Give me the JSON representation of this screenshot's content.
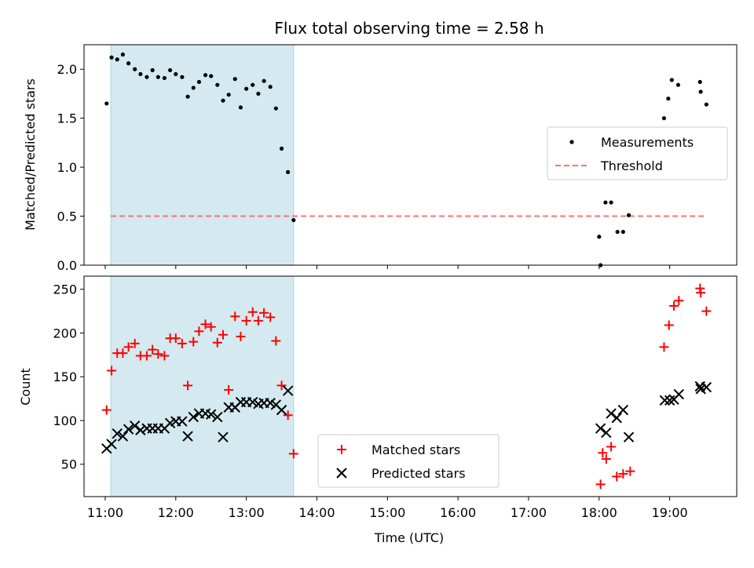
{
  "colors": {
    "shade": "#d4eaf0",
    "shade_edge": "#a8d4e0",
    "measurement": "#000000",
    "threshold": "#ff7070",
    "matched": "#ff0000",
    "predicted": "#000000"
  },
  "chart_data": [
    {
      "type": "scatter",
      "title": "Flux total observing time = 2.58 h",
      "xlabel": "",
      "ylabel": "Matched/Predicted stars",
      "xlim": [
        10.7,
        19.95
      ],
      "ylim": [
        0,
        2.25
      ],
      "yticks": [
        "0.0",
        "0.5",
        "1.0",
        "1.5",
        "2.0"
      ],
      "ytick_values": [
        0,
        0.5,
        1.0,
        1.5,
        2.0
      ],
      "shaded_x": [
        11.08,
        13.67
      ],
      "threshold": {
        "name": "Threshold",
        "value": 0.5,
        "x": [
          11.08,
          19.52
        ]
      },
      "legend_position": "center-right",
      "series": [
        {
          "name": "Measurements",
          "points": [
            [
              11.02,
              1.65
            ],
            [
              11.09,
              2.12
            ],
            [
              11.17,
              2.1
            ],
            [
              11.25,
              2.15
            ],
            [
              11.33,
              2.06
            ],
            [
              11.42,
              2.0
            ],
            [
              11.5,
              1.95
            ],
            [
              11.59,
              1.92
            ],
            [
              11.67,
              1.99
            ],
            [
              11.75,
              1.92
            ],
            [
              11.84,
              1.91
            ],
            [
              11.92,
              1.99
            ],
            [
              12.0,
              1.95
            ],
            [
              12.09,
              1.92
            ],
            [
              12.17,
              1.72
            ],
            [
              12.25,
              1.81
            ],
            [
              12.33,
              1.87
            ],
            [
              12.42,
              1.94
            ],
            [
              12.5,
              1.93
            ],
            [
              12.59,
              1.84
            ],
            [
              12.67,
              1.68
            ],
            [
              12.75,
              1.74
            ],
            [
              12.84,
              1.9
            ],
            [
              12.92,
              1.61
            ],
            [
              13.0,
              1.8
            ],
            [
              13.09,
              1.84
            ],
            [
              13.17,
              1.75
            ],
            [
              13.25,
              1.88
            ],
            [
              13.34,
              1.82
            ],
            [
              13.42,
              1.6
            ],
            [
              13.5,
              1.19
            ],
            [
              13.59,
              0.95
            ],
            [
              13.67,
              0.46
            ],
            [
              18.0,
              0.29
            ],
            [
              18.02,
              0.0
            ],
            [
              18.09,
              0.64
            ],
            [
              18.17,
              0.64
            ],
            [
              18.26,
              0.34
            ],
            [
              18.34,
              0.34
            ],
            [
              18.42,
              0.51
            ],
            [
              18.92,
              1.5
            ],
            [
              18.98,
              1.7
            ],
            [
              19.03,
              1.89
            ],
            [
              19.12,
              1.84
            ],
            [
              19.43,
              1.87
            ],
            [
              19.44,
              1.77
            ],
            [
              19.52,
              1.64
            ]
          ]
        }
      ]
    },
    {
      "type": "scatter",
      "title": "",
      "xlabel": "Time (UTC)",
      "ylabel": "Count",
      "xlim": [
        10.7,
        19.95
      ],
      "ylim": [
        13,
        265
      ],
      "xticks": [
        "11:00",
        "12:00",
        "13:00",
        "14:00",
        "15:00",
        "16:00",
        "17:00",
        "18:00",
        "19:00"
      ],
      "xtick_values": [
        11,
        12,
        13,
        14,
        15,
        16,
        17,
        18,
        19
      ],
      "yticks": [
        "50",
        "100",
        "150",
        "200",
        "250"
      ],
      "ytick_values": [
        50,
        100,
        150,
        200,
        250
      ],
      "shaded_x": [
        11.08,
        13.67
      ],
      "legend_position": "lower-center",
      "series": [
        {
          "name": "Matched stars",
          "points": [
            [
              11.02,
              112
            ],
            [
              11.09,
              157
            ],
            [
              11.17,
              177
            ],
            [
              11.25,
              177
            ],
            [
              11.33,
              184
            ],
            [
              11.42,
              188
            ],
            [
              11.5,
              174
            ],
            [
              11.59,
              174
            ],
            [
              11.67,
              181
            ],
            [
              11.75,
              176
            ],
            [
              11.84,
              174
            ],
            [
              11.92,
              194
            ],
            [
              12.0,
              194
            ],
            [
              12.09,
              188
            ],
            [
              12.17,
              140
            ],
            [
              12.25,
              190
            ],
            [
              12.33,
              202
            ],
            [
              12.42,
              210
            ],
            [
              12.5,
              207
            ],
            [
              12.59,
              189
            ],
            [
              12.67,
              198
            ],
            [
              12.75,
              135
            ],
            [
              12.84,
              219
            ],
            [
              12.92,
              196
            ],
            [
              13.0,
              214
            ],
            [
              13.09,
              224
            ],
            [
              13.17,
              214
            ],
            [
              13.25,
              223
            ],
            [
              13.34,
              218
            ],
            [
              13.42,
              191
            ],
            [
              13.5,
              140
            ],
            [
              13.59,
              106
            ],
            [
              13.67,
              62
            ],
            [
              18.02,
              27
            ],
            [
              18.05,
              63
            ],
            [
              18.1,
              56
            ],
            [
              18.17,
              70
            ],
            [
              18.25,
              36
            ],
            [
              18.34,
              39
            ],
            [
              18.44,
              42
            ],
            [
              18.92,
              184
            ],
            [
              18.99,
              209
            ],
            [
              19.06,
              231
            ],
            [
              19.13,
              237
            ],
            [
              19.43,
              251
            ],
            [
              19.44,
              246
            ],
            [
              19.52,
              225
            ]
          ]
        },
        {
          "name": "Predicted stars",
          "points": [
            [
              11.02,
              68
            ],
            [
              11.09,
              73
            ],
            [
              11.17,
              85
            ],
            [
              11.25,
              82
            ],
            [
              11.33,
              90
            ],
            [
              11.42,
              94
            ],
            [
              11.5,
              89
            ],
            [
              11.59,
              91
            ],
            [
              11.67,
              91
            ],
            [
              11.75,
              91
            ],
            [
              11.84,
              91
            ],
            [
              11.92,
              97
            ],
            [
              12.0,
              99
            ],
            [
              12.09,
              99
            ],
            [
              12.17,
              82
            ],
            [
              12.25,
              104
            ],
            [
              12.33,
              108
            ],
            [
              12.42,
              108
            ],
            [
              12.5,
              107
            ],
            [
              12.59,
              104
            ],
            [
              12.67,
              81
            ],
            [
              12.75,
              115
            ],
            [
              12.84,
              115
            ],
            [
              12.92,
              121
            ],
            [
              13.0,
              121
            ],
            [
              13.09,
              121
            ],
            [
              13.17,
              119
            ],
            [
              13.25,
              120
            ],
            [
              13.34,
              120
            ],
            [
              13.42,
              118
            ],
            [
              13.5,
              112
            ],
            [
              13.59,
              134
            ],
            [
              18.02,
              91
            ],
            [
              18.1,
              86
            ],
            [
              18.17,
              108
            ],
            [
              18.25,
              103
            ],
            [
              18.34,
              112
            ],
            [
              18.42,
              81
            ],
            [
              18.93,
              123
            ],
            [
              19.0,
              123
            ],
            [
              19.06,
              124
            ],
            [
              19.13,
              130
            ],
            [
              19.43,
              139
            ],
            [
              19.44,
              136
            ],
            [
              19.52,
              138
            ]
          ]
        }
      ]
    }
  ]
}
